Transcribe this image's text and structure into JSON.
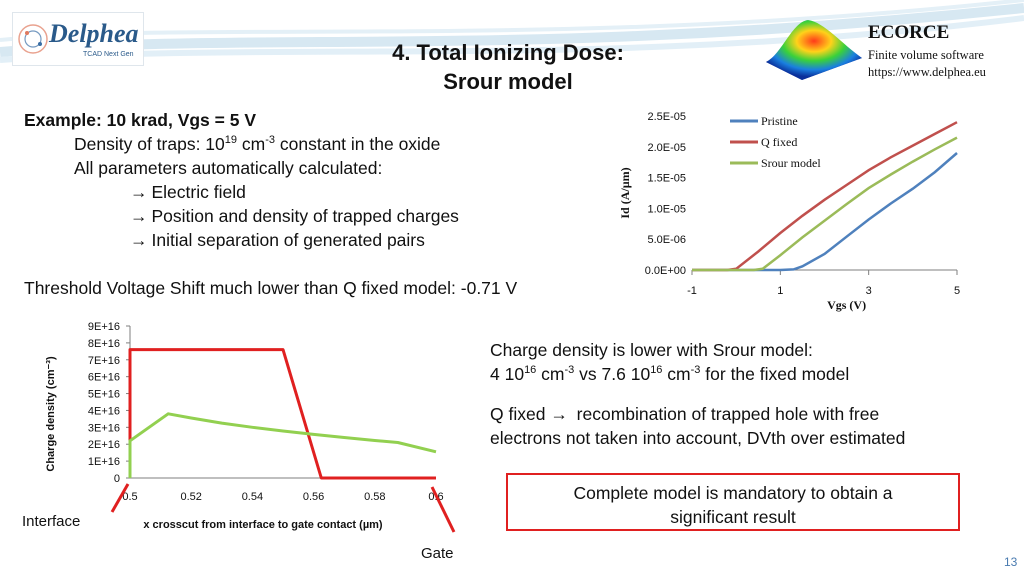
{
  "header": {
    "title_line1": "4. Total Ionizing Dose:",
    "title_line2": "Srour model",
    "logo_text": "Delphea",
    "logo_subtext": "TCAD Next Gen",
    "ecorce_title": "ECORCE",
    "ecorce_line1": "Finite volume software",
    "ecorce_line2": "https://www.delphea.eu"
  },
  "left_text": {
    "example": "Example: 10 krad, Vgs = 5 V",
    "density_prefix": "Density of traps: 10",
    "density_exp": "19",
    "density_mid": " cm",
    "density_unit_exp": "-3",
    "density_suffix": " constant in the oxide",
    "params": "All parameters automatically calculated:",
    "bullet1": "Electric field",
    "bullet2": "Position and density of trapped charges",
    "bullet3": "Initial separation of generated pairs",
    "threshold": "Threshold Voltage Shift much lower than Q fixed model: -0.71 V"
  },
  "right_text": {
    "charge_line1": "Charge density is lower with Srour model:",
    "charge_line2_a": " 4 10",
    "charge_line2_exp1": "16",
    "charge_line2_b": " cm",
    "charge_line2_exp2": "-3",
    "charge_line2_c": " vs 7.6 10",
    "charge_line2_exp3": "16",
    "charge_line2_d": " cm",
    "charge_line2_exp4": "-3",
    "charge_line2_e": " for the fixed model",
    "qfixed_line1": "Q fixed ",
    "qfixed_line1b": " recombination of trapped hole with free",
    "qfixed_line2": "electrons not taken into account, DVth over estimated",
    "callout_line1": "Complete model is mandatory to obtain a",
    "callout_line2": "significant result"
  },
  "annotations": {
    "interface": "Interface",
    "gate": "Gate",
    "page_number": "13"
  },
  "chart_data": [
    {
      "type": "line",
      "title": "",
      "xlabel": "Vgs (V)",
      "ylabel": "Id (A/µm)",
      "xlim": [
        -1,
        5
      ],
      "ylim": [
        0,
        2.5e-05
      ],
      "x_ticks": [
        "-1",
        "1",
        "3",
        "5"
      ],
      "y_ticks": [
        "0.0E+00",
        "5.0E-06",
        "1.0E-05",
        "1.5E-05",
        "2.0E-05",
        "2.5E-05"
      ],
      "grid": false,
      "legend": "top-right",
      "series": [
        {
          "name": "Pristine",
          "color": "#4f81bd",
          "x": [
            -1,
            0,
            1,
            1.3,
            1.5,
            2,
            2.5,
            3,
            3.5,
            4,
            4.5,
            5
          ],
          "y": [
            0,
            0,
            0,
            1e-07,
            6e-07,
            2.6e-06,
            5.4e-06,
            8.2e-06,
            1.08e-05,
            1.32e-05,
            1.59e-05,
            1.9e-05
          ]
        },
        {
          "name": "Q fixed",
          "color": "#c0504d",
          "x": [
            -1,
            -0.2,
            0,
            0.5,
            1,
            1.5,
            2,
            2.5,
            3,
            3.5,
            4,
            4.5,
            5
          ],
          "y": [
            0,
            0,
            2e-07,
            3e-06,
            6e-06,
            8.8e-06,
            1.14e-05,
            1.38e-05,
            1.62e-05,
            1.83e-05,
            2.02e-05,
            2.21e-05,
            2.4e-05
          ]
        },
        {
          "name": "Srour model",
          "color": "#9bbb59",
          "x": [
            -1,
            0.4,
            0.6,
            1,
            1.5,
            2,
            2.5,
            3,
            3.5,
            4,
            4.5,
            5
          ],
          "y": [
            0,
            0,
            2e-07,
            2.4e-06,
            5.3e-06,
            8e-06,
            1.07e-05,
            1.33e-05,
            1.55e-05,
            1.76e-05,
            1.96e-05,
            2.15e-05
          ]
        }
      ]
    },
    {
      "type": "line",
      "title": "",
      "xlabel": "x crosscut from interface to gate contact (µm)",
      "ylabel": "Charge density (cm⁻³)",
      "xlim": [
        0.5,
        0.6
      ],
      "ylim": [
        0,
        9e+16
      ],
      "x_ticks": [
        "0.5",
        "0.52",
        "0.54",
        "0.56",
        "0.58",
        "0.6"
      ],
      "y_ticks": [
        "0",
        "1E+16",
        "2E+16",
        "3E+16",
        "4E+16",
        "5E+16",
        "6E+16",
        "7E+16",
        "8E+16",
        "9E+16"
      ],
      "grid": false,
      "series": [
        {
          "color": "#e02020",
          "x": [
            0.5,
            0.5,
            0.55,
            0.5625,
            0.6
          ],
          "y": [
            0,
            7.6e+16,
            7.6e+16,
            0,
            0
          ]
        },
        {
          "color": "#92d050",
          "x": [
            0.5,
            0.5,
            0.5125,
            0.52,
            0.53,
            0.54,
            0.55,
            0.56,
            0.57,
            0.58,
            0.5875,
            0.6
          ],
          "y": [
            0,
            2.2e+16,
            3.8e+16,
            3.55e+16,
            3.25e+16,
            3e+16,
            2.78e+16,
            2.58e+16,
            2.4e+16,
            2.22e+16,
            2.1e+16,
            1.55e+16
          ]
        }
      ]
    }
  ]
}
